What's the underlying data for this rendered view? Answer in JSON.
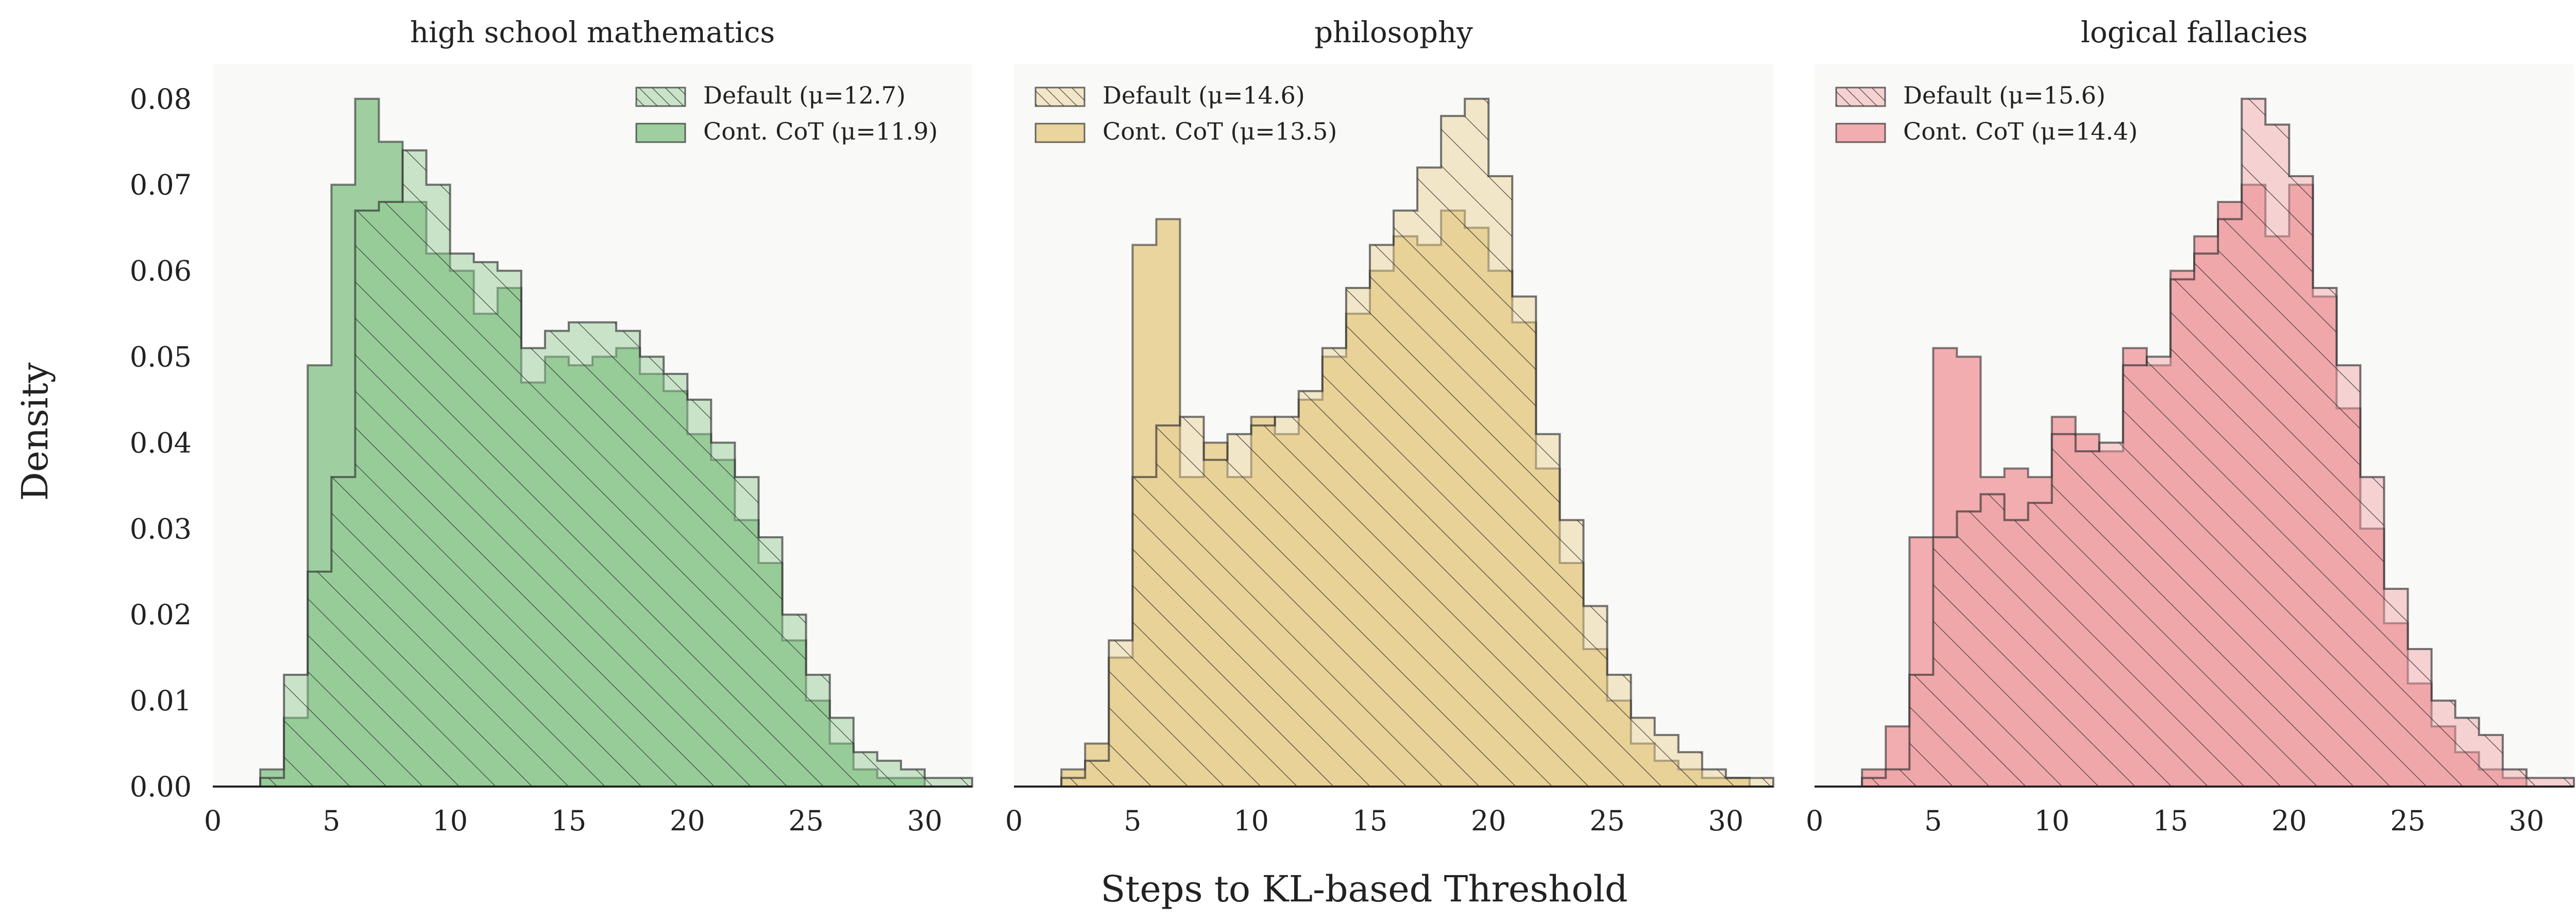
{
  "figure": {
    "ylabel": "Density",
    "xlabel": "Steps to KL-based Threshold"
  },
  "colors": {
    "axes_bg": "#f9f9f8",
    "edge": "#2e2e2e",
    "hatch": "#2e2e2e"
  },
  "chart_data": [
    {
      "type": "histogram",
      "title": "high school mathematics",
      "color": "#8fc891",
      "xlim": [
        0,
        32
      ],
      "ylim": [
        0,
        0.084
      ],
      "xticks": [
        0,
        5,
        10,
        15,
        20,
        25,
        30
      ],
      "yticks": [
        0.0,
        0.01,
        0.02,
        0.03,
        0.04,
        0.05,
        0.06,
        0.07,
        0.08
      ],
      "ytick_labels": [
        "0.00",
        "0.01",
        "0.02",
        "0.03",
        "0.04",
        "0.05",
        "0.06",
        "0.07",
        "0.08"
      ],
      "grid": false,
      "legend_position": "top-right",
      "bin_edges": [
        2,
        3,
        4,
        5,
        6,
        7,
        8,
        9,
        10,
        11,
        12,
        13,
        14,
        15,
        16,
        17,
        18,
        19,
        20,
        21,
        22,
        23,
        24,
        25,
        26,
        27,
        28,
        29,
        30,
        31,
        32
      ],
      "series": [
        {
          "name": "Default (μ=12.7)",
          "hatched": true,
          "values": [
            0.001,
            0.013,
            0.025,
            0.036,
            0.067,
            0.068,
            0.074,
            0.07,
            0.062,
            0.061,
            0.06,
            0.051,
            0.053,
            0.054,
            0.054,
            0.053,
            0.05,
            0.048,
            0.045,
            0.04,
            0.036,
            0.029,
            0.02,
            0.013,
            0.008,
            0.004,
            0.003,
            0.002,
            0.001,
            0.001
          ]
        },
        {
          "name": "Cont. CoT (μ=11.9)",
          "hatched": false,
          "values": [
            0.002,
            0.008,
            0.049,
            0.07,
            0.08,
            0.075,
            0.068,
            0.062,
            0.06,
            0.055,
            0.058,
            0.047,
            0.05,
            0.049,
            0.05,
            0.051,
            0.048,
            0.046,
            0.041,
            0.038,
            0.031,
            0.026,
            0.017,
            0.01,
            0.005,
            0.002,
            0.001,
            0.001,
            0.0,
            0.0
          ]
        }
      ]
    },
    {
      "type": "histogram",
      "title": "philosophy",
      "color": "#e8cf8e",
      "xlim": [
        0,
        32
      ],
      "ylim": [
        0,
        0.084
      ],
      "xticks": [
        0,
        5,
        10,
        15,
        20,
        25,
        30
      ],
      "yticks": [
        0.0,
        0.01,
        0.02,
        0.03,
        0.04,
        0.05,
        0.06,
        0.07,
        0.08
      ],
      "grid": false,
      "legend_position": "top-left",
      "bin_edges": [
        2,
        3,
        4,
        5,
        6,
        7,
        8,
        9,
        10,
        11,
        12,
        13,
        14,
        15,
        16,
        17,
        18,
        19,
        20,
        21,
        22,
        23,
        24,
        25,
        26,
        27,
        28,
        29,
        30,
        31,
        32
      ],
      "series": [
        {
          "name": "Default (μ=14.6)",
          "hatched": true,
          "values": [
            0.001,
            0.003,
            0.017,
            0.036,
            0.042,
            0.043,
            0.038,
            0.041,
            0.042,
            0.043,
            0.046,
            0.051,
            0.058,
            0.063,
            0.067,
            0.072,
            0.078,
            0.08,
            0.071,
            0.057,
            0.041,
            0.031,
            0.021,
            0.013,
            0.008,
            0.006,
            0.004,
            0.002,
            0.001,
            0.001
          ]
        },
        {
          "name": "Cont. CoT (μ=13.5)",
          "hatched": false,
          "values": [
            0.002,
            0.005,
            0.015,
            0.063,
            0.066,
            0.036,
            0.04,
            0.036,
            0.043,
            0.041,
            0.045,
            0.05,
            0.055,
            0.06,
            0.064,
            0.063,
            0.067,
            0.065,
            0.06,
            0.054,
            0.037,
            0.026,
            0.016,
            0.01,
            0.005,
            0.003,
            0.002,
            0.001,
            0.001,
            0.0
          ]
        }
      ]
    },
    {
      "type": "histogram",
      "title": "logical fallacies",
      "color": "#f0a0a3",
      "xlim": [
        0,
        32
      ],
      "ylim": [
        0,
        0.084
      ],
      "xticks": [
        0,
        5,
        10,
        15,
        20,
        25,
        30
      ],
      "yticks": [
        0.0,
        0.01,
        0.02,
        0.03,
        0.04,
        0.05,
        0.06,
        0.07,
        0.08
      ],
      "grid": false,
      "legend_position": "top-left",
      "bin_edges": [
        2,
        3,
        4,
        5,
        6,
        7,
        8,
        9,
        10,
        11,
        12,
        13,
        14,
        15,
        16,
        17,
        18,
        19,
        20,
        21,
        22,
        23,
        24,
        25,
        26,
        27,
        28,
        29,
        30,
        31,
        32
      ],
      "series": [
        {
          "name": "Default (μ=15.6)",
          "hatched": true,
          "values": [
            0.001,
            0.002,
            0.013,
            0.029,
            0.032,
            0.034,
            0.031,
            0.033,
            0.041,
            0.039,
            0.04,
            0.049,
            0.05,
            0.059,
            0.062,
            0.066,
            0.08,
            0.077,
            0.071,
            0.058,
            0.049,
            0.036,
            0.023,
            0.016,
            0.01,
            0.008,
            0.006,
            0.002,
            0.001,
            0.001
          ]
        },
        {
          "name": "Cont. CoT (μ=14.4)",
          "hatched": false,
          "values": [
            0.002,
            0.007,
            0.029,
            0.051,
            0.05,
            0.036,
            0.037,
            0.036,
            0.043,
            0.041,
            0.039,
            0.051,
            0.049,
            0.06,
            0.064,
            0.068,
            0.07,
            0.064,
            0.07,
            0.057,
            0.044,
            0.03,
            0.019,
            0.012,
            0.007,
            0.004,
            0.002,
            0.001,
            0.0,
            0.0
          ]
        }
      ]
    }
  ]
}
